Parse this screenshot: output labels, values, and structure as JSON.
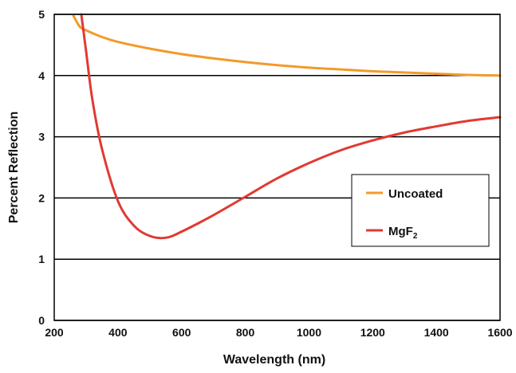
{
  "chart_data": {
    "type": "line",
    "title": "",
    "xlabel": "Wavelength (nm)",
    "ylabel": "Percent Reflection",
    "xlim": [
      200,
      1600
    ],
    "ylim": [
      0,
      5
    ],
    "x_ticks": [
      "200",
      "400",
      "600",
      "800",
      "1000",
      "1200",
      "1400",
      "1600"
    ],
    "y_ticks": [
      "0",
      "1",
      "2",
      "3",
      "4",
      "5"
    ],
    "grid": "horizontal",
    "legend_position": "right",
    "series": [
      {
        "name": "Uncoated",
        "color": "#f39a2b",
        "x": [
          260,
          280,
          300,
          350,
          400,
          500,
          600,
          700,
          800,
          900,
          1000,
          1100,
          1200,
          1300,
          1400,
          1500,
          1600
        ],
        "y": [
          4.98,
          4.8,
          4.74,
          4.63,
          4.55,
          4.44,
          4.35,
          4.28,
          4.22,
          4.17,
          4.13,
          4.1,
          4.07,
          4.05,
          4.03,
          4.01,
          4.0
        ]
      },
      {
        "name": "MgF",
        "name_subscript": "2",
        "color": "#e03a32",
        "x": [
          285,
          300,
          320,
          350,
          400,
          450,
          500,
          550,
          600,
          700,
          800,
          900,
          1000,
          1100,
          1200,
          1300,
          1400,
          1500,
          1600
        ],
        "y": [
          5.0,
          4.4,
          3.6,
          2.8,
          1.95,
          1.55,
          1.38,
          1.35,
          1.45,
          1.72,
          2.02,
          2.32,
          2.57,
          2.78,
          2.94,
          3.07,
          3.17,
          3.26,
          3.32
        ]
      }
    ]
  }
}
